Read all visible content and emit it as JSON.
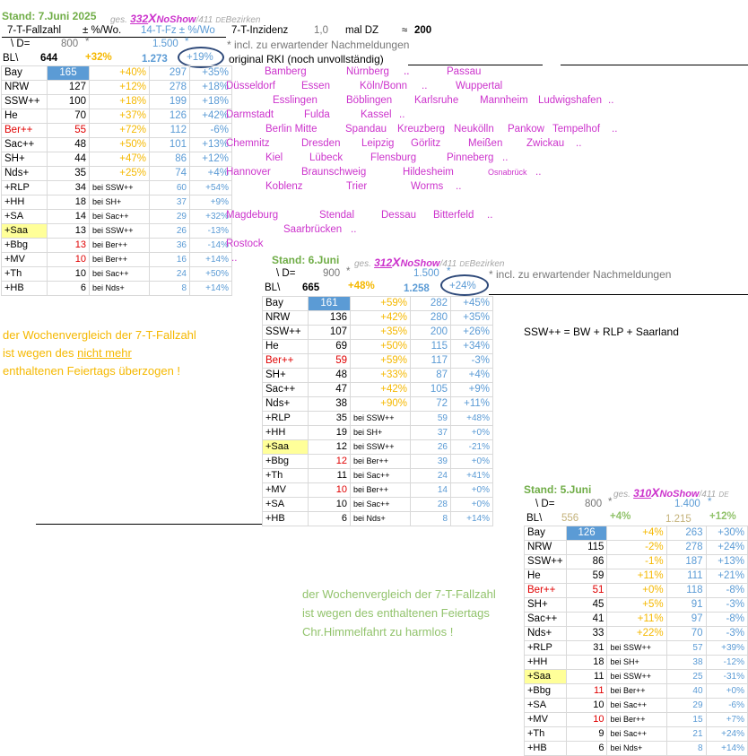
{
  "header": {
    "stand": "Stand: 7.Juni 2025",
    "ges": "ges.",
    "noshow_count": "332",
    "x_mark": "X",
    "noshow_label": "NoShow",
    "total": "/411",
    "de": "DE",
    "bezirken": "Bezirken",
    "fallzahl_label": "7-T-Fallzahl",
    "pct_wo": "± %/Wo.",
    "fz_label": "14-T-Fz ± %/Wo",
    "inzidenz_label": "7-T-Inzidenz",
    "inzidenz_val": "1,0",
    "mal_dz": "mal DZ",
    "approx": "≈",
    "approx_val": "200",
    "d_label": "\\ D=",
    "d_val": "800",
    "star": "*",
    "d_val2": "1.500",
    "star2": "*",
    "footnote": "* incl. zu erwartender Nachmeldungen",
    "bl_label": "BL\\",
    "bl_total": "644",
    "bl_pct": "+32%",
    "bl_14": "1.273",
    "bl_14pct": "+19%",
    "rki": "original RKI (noch unvollständig)"
  },
  "main_rows": [
    {
      "bl": "Bay",
      "v": "165",
      "p": "+40%",
      "f": "297",
      "fp": "+35%"
    },
    {
      "bl": "NRW",
      "v": "127",
      "p": "+12%",
      "f": "278",
      "fp": "+18%"
    },
    {
      "bl": "SSW++",
      "v": "100",
      "p": "+18%",
      "f": "199",
      "fp": "+18%"
    },
    {
      "bl": "He",
      "v": "70",
      "p": "+37%",
      "f": "126",
      "fp": "+42%"
    },
    {
      "bl": "Ber++",
      "v": "55",
      "p": "+72%",
      "f": "112",
      "fp": "-6%"
    },
    {
      "bl": "Sac++",
      "v": "48",
      "p": "+50%",
      "f": "101",
      "fp": "+13%"
    },
    {
      "bl": "SH+",
      "v": "44",
      "p": "+47%",
      "f": "86",
      "fp": "+12%"
    },
    {
      "bl": "Nds+",
      "v": "35",
      "p": "+25%",
      "f": "74",
      "fp": "+4%"
    }
  ],
  "main_sub": [
    {
      "bl": "+RLP",
      "v": "34",
      "bei": "bei SSW++",
      "f": "60",
      "fp": "+54%"
    },
    {
      "bl": "+HH",
      "v": "18",
      "bei": "bei SH+",
      "f": "37",
      "fp": "+9%"
    },
    {
      "bl": "+SA",
      "v": "14",
      "bei": "bei Sac++",
      "f": "29",
      "fp": "+32%"
    },
    {
      "bl": "+Saa",
      "v": "13",
      "bei": "bei SSW++",
      "f": "26",
      "fp": "-13%"
    },
    {
      "bl": "+Bbg",
      "v": "13",
      "bei": "bei Ber++",
      "f": "36",
      "fp": "-14%"
    },
    {
      "bl": "+MV",
      "v": "10",
      "bei": "bei Ber++",
      "f": "16",
      "fp": "+14%"
    },
    {
      "bl": "+Th",
      "v": "10",
      "bei": "bei Sac++",
      "f": "24",
      "fp": "+50%"
    },
    {
      "bl": "+HB",
      "v": "6",
      "bei": "bei Nds+",
      "f": "8",
      "fp": "+14%"
    }
  ],
  "cities": {
    "c1": "Bamberg",
    "c2": "..",
    "c3": "Nürnberg",
    "c4": "..",
    "c5": "Passau",
    "c6": "Düsseldorf",
    "c7": "Essen",
    "c8": "Köln/Bonn",
    "c9": "..",
    "c10": "Wuppertal",
    "c11": "Esslingen",
    "c12": "Böblingen",
    "c13": "Karlsruhe",
    "c14": "Mannheim",
    "c15": "Ludwigshafen",
    "c16": "..",
    "c17": "Darmstadt",
    "c18": "Fulda",
    "c19": "Kassel",
    "c20": "..",
    "c21": "Berlin Mitte",
    "c22": "Spandau",
    "c23": "Kreuzberg",
    "c24": "Neukölln",
    "c25": "Pankow",
    "c26": "Tempelhof",
    "c27": "..",
    "c28": "Chemnitz",
    "c29": "Dresden",
    "c30": "Leipzig",
    "c31": "Görlitz",
    "c32": "Meißen",
    "c33": "Zwickau",
    "c34": "..",
    "c35": "Kiel",
    "c36": "Lübeck",
    "c37": "Flensburg",
    "c38": "Pinneberg",
    "c39": "..",
    "c40": "Hannover",
    "c41": "Braunschweig",
    "c42": "Hildesheim",
    "c43": "Osnabrück",
    "c44": "..",
    "c45": "Koblenz",
    "c46": "Trier",
    "c47": "Worms",
    "c48": "..",
    "c49": "Magdeburg",
    "c50": "Stendal",
    "c51": "Dessau",
    "c52": "Bitterfeld",
    "c53": "..",
    "c54": "Saarbrücken",
    "c55": "..",
    "c56": "Rostock",
    "c57": ".."
  },
  "note1": {
    "l1": "der Wochenvergleich der 7-T-Fallzahl",
    "l2a": "ist wegen des ",
    "l2b": "nicht mehr",
    "l3": "enthaltenen Feiertags überzogen !"
  },
  "ssw_def": "SSW++  =  BW + RLP + Saarland",
  "t2": {
    "stand": "Stand: 6.Juni",
    "ges": "ges.",
    "noshow": "312",
    "x": "X",
    "ns": "NoShow",
    "tot": "/411",
    "de": "DE",
    "bez": "Bezirken",
    "d": "\\ D=",
    "dv": "900",
    "star": "*",
    "dv2": "1.500",
    "star2": "*",
    "footnote": "* incl. zu erwartender Nachmeldungen",
    "bl": "BL\\",
    "tot7": "665",
    "p": "+48%",
    "tot14": "1.258",
    "p14": "+24%",
    "rows": [
      {
        "bl": "Bay",
        "v": "161",
        "p": "+59%",
        "f": "282",
        "fp": "+45%"
      },
      {
        "bl": "NRW",
        "v": "136",
        "p": "+42%",
        "f": "280",
        "fp": "+35%"
      },
      {
        "bl": "SSW++",
        "v": "107",
        "p": "+35%",
        "f": "200",
        "fp": "+26%"
      },
      {
        "bl": "He",
        "v": "69",
        "p": "+50%",
        "f": "115",
        "fp": "+34%"
      },
      {
        "bl": "Ber++",
        "v": "59",
        "p": "+59%",
        "f": "117",
        "fp": "-3%"
      },
      {
        "bl": "SH+",
        "v": "48",
        "p": "+33%",
        "f": "87",
        "fp": "+4%"
      },
      {
        "bl": "Sac++",
        "v": "47",
        "p": "+42%",
        "f": "105",
        "fp": "+9%"
      },
      {
        "bl": "Nds+",
        "v": "38",
        "p": "+90%",
        "f": "72",
        "fp": "+11%"
      }
    ],
    "sub": [
      {
        "bl": "+RLP",
        "v": "35",
        "bei": "bei SSW++",
        "f": "59",
        "fp": "+48%"
      },
      {
        "bl": "+HH",
        "v": "19",
        "bei": "bei SH+",
        "f": "37",
        "fp": "+0%"
      },
      {
        "bl": "+Saa",
        "v": "12",
        "bei": "bei SSW++",
        "f": "26",
        "fp": "-21%"
      },
      {
        "bl": "+Bbg",
        "v": "12",
        "bei": "bei Ber++",
        "f": "39",
        "fp": "+0%"
      },
      {
        "bl": "+Th",
        "v": "11",
        "bei": "bei Sac++",
        "f": "24",
        "fp": "+41%"
      },
      {
        "bl": "+MV",
        "v": "10",
        "bei": "bei Ber++",
        "f": "14",
        "fp": "+0%"
      },
      {
        "bl": "+SA",
        "v": "10",
        "bei": "bei Sac++",
        "f": "28",
        "fp": "+0%"
      },
      {
        "bl": "+HB",
        "v": "6",
        "bei": "bei Nds+",
        "f": "8",
        "fp": "+14%"
      }
    ]
  },
  "note2": {
    "l1": "der Wochenvergleich der 7-T-Fallzahl",
    "l2": "ist wegen des enthaltenen Feiertags",
    "l3": "Chr.Himmelfahrt zu harmlos !"
  },
  "t3": {
    "stand": "Stand: 5.Juni",
    "ges": "ges.",
    "noshow": "310",
    "x": "X",
    "ns": "NoShow",
    "tot": "/411",
    "de": "DE",
    "d": "\\ D=",
    "dv": "800",
    "star": "*",
    "dv2": "1.400",
    "star2": "*",
    "bl": "BL\\",
    "tot7": "556",
    "p": "+4%",
    "tot14": "1.215",
    "p14": "+12%",
    "rows": [
      {
        "bl": "Bay",
        "v": "126",
        "p": "+4%",
        "f": "263",
        "fp": "+30%"
      },
      {
        "bl": "NRW",
        "v": "115",
        "p": "-2%",
        "f": "278",
        "fp": "+24%"
      },
      {
        "bl": "SSW++",
        "v": "86",
        "p": "-1%",
        "f": "187",
        "fp": "+13%"
      },
      {
        "bl": "He",
        "v": "59",
        "p": "+11%",
        "f": "111",
        "fp": "+21%"
      },
      {
        "bl": "Ber++",
        "v": "51",
        "p": "+0%",
        "f": "118",
        "fp": "-8%"
      },
      {
        "bl": "SH+",
        "v": "45",
        "p": "+5%",
        "f": "91",
        "fp": "-3%"
      },
      {
        "bl": "Sac++",
        "v": "41",
        "p": "+11%",
        "f": "97",
        "fp": "-8%"
      },
      {
        "bl": "Nds+",
        "v": "33",
        "p": "+22%",
        "f": "70",
        "fp": "-3%"
      }
    ],
    "sub": [
      {
        "bl": "+RLP",
        "v": "31",
        "bei": "bei SSW++",
        "f": "57",
        "fp": "+39%"
      },
      {
        "bl": "+HH",
        "v": "18",
        "bei": "bei SH+",
        "f": "38",
        "fp": "-12%"
      },
      {
        "bl": "+Saa",
        "v": "11",
        "bei": "bei SSW++",
        "f": "25",
        "fp": "-31%"
      },
      {
        "bl": "+Bbg",
        "v": "11",
        "bei": "bei Ber++",
        "f": "40",
        "fp": "+0%"
      },
      {
        "bl": "+SA",
        "v": "10",
        "bei": "bei Sac++",
        "f": "29",
        "fp": "-6%"
      },
      {
        "bl": "+MV",
        "v": "10",
        "bei": "bei Ber++",
        "f": "15",
        "fp": "+7%"
      },
      {
        "bl": "+Th",
        "v": "9",
        "bei": "bei Sac++",
        "f": "21",
        "fp": "+24%"
      },
      {
        "bl": "+HB",
        "v": "6",
        "bei": "bei Nds+",
        "f": "8",
        "fp": "+14%"
      }
    ]
  }
}
